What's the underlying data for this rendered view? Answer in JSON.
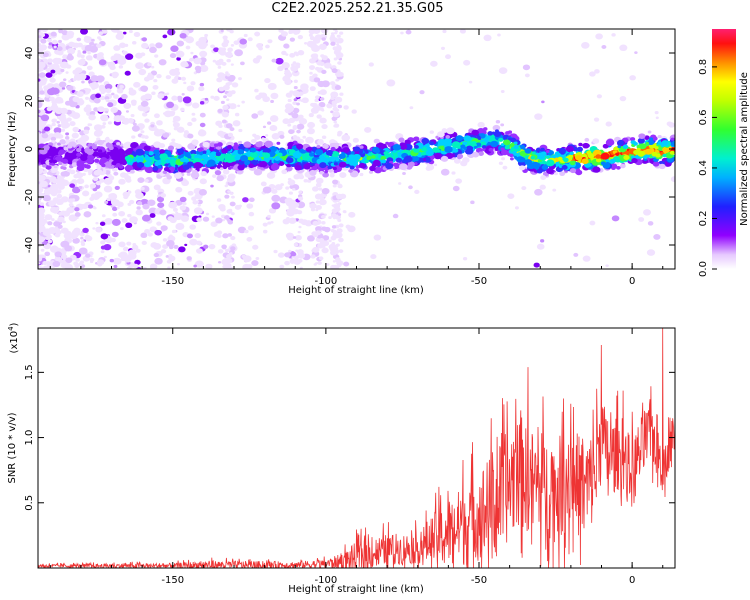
{
  "title": "C2E2.2025.252.21.35.G05",
  "chart_data": [
    {
      "type": "heatmap",
      "xlabel": "Height of straight line (km)",
      "ylabel": "Frequency (Hz)",
      "xlim": [
        -194,
        14
      ],
      "ylim": [
        -50,
        50
      ],
      "xticks": [
        -150,
        -100,
        -50,
        0
      ],
      "yticks": [
        -40,
        -20,
        0,
        20,
        40
      ],
      "colorbar": {
        "label": "Normalized spectral amplitude",
        "range": [
          0.0,
          0.95
        ],
        "ticks": [
          "0.0",
          "0.2",
          "0.4",
          "0.6",
          "0.8"
        ]
      },
      "ridge": {
        "x": [
          -194,
          -170,
          -160,
          -150,
          -140,
          -130,
          -120,
          -110,
          -100,
          -90,
          -80,
          -70,
          -60,
          -50,
          -45,
          -40,
          -35,
          -30,
          -20,
          -10,
          0,
          5,
          10,
          14
        ],
        "y": [
          -3,
          -3,
          -4,
          -5,
          -4,
          -3,
          -3,
          -3,
          -4,
          -4,
          -3,
          -1,
          1,
          3,
          4,
          2,
          -3,
          -5,
          -4,
          -3,
          -1,
          0,
          -1,
          -1
        ]
      }
    },
    {
      "type": "line",
      "xlabel": "Height of straight line (km)",
      "ylabel": "SNR (10 * v/v)",
      "yscale_label": "(x10",
      "yscale_exp": "4",
      "xlim": [
        -194,
        14
      ],
      "ylim": [
        0,
        18400
      ],
      "xticks": [
        -150,
        -100,
        -50,
        0
      ],
      "yticks": [
        "0.5",
        "1.0",
        "1.5"
      ],
      "series": [
        {
          "color": "#ee3333",
          "envelope": {
            "x": [
              -194,
              -150,
              -140,
              -110,
              -100,
              -95,
              -90,
              -80,
              -70,
              -65,
              -60,
              -55,
              -50,
              -45,
              -40,
              -37,
              -35,
              -30,
              -25,
              -20,
              -15,
              -12,
              -10,
              -8,
              -5,
              0,
              3,
              6,
              8,
              10,
              12,
              14
            ],
            "base": [
              150,
              150,
              200,
              200,
              300,
              400,
              700,
              1300,
              1400,
              2000,
              2400,
              3000,
              3800,
              4500,
              6000,
              7500,
              6500,
              6000,
              5500,
              6500,
              5500,
              7000,
              10000,
              8000,
              8500,
              7000,
              9000,
              10000,
              9500,
              7000,
              9000,
              10500
            ],
            "amp": [
              150,
              250,
              400,
              350,
              400,
              800,
              1500,
              1500,
              1500,
              2500,
              3000,
              4000,
              4500,
              5000,
              5500,
              6000,
              5000,
              5000,
              5000,
              5000,
              5000,
              4500,
              4500,
              3500,
              3500,
              3500,
              3000,
              3000,
              3000,
              2000,
              2000,
              2000
            ]
          },
          "spikes": [
            {
              "x": -34,
              "y": 15400
            },
            {
              "x": -10,
              "y": 17100
            },
            {
              "x": 10,
              "y": 18400
            },
            {
              "x": -20,
              "y": 12600
            },
            {
              "x": -3,
              "y": 13600
            }
          ]
        }
      ]
    }
  ]
}
